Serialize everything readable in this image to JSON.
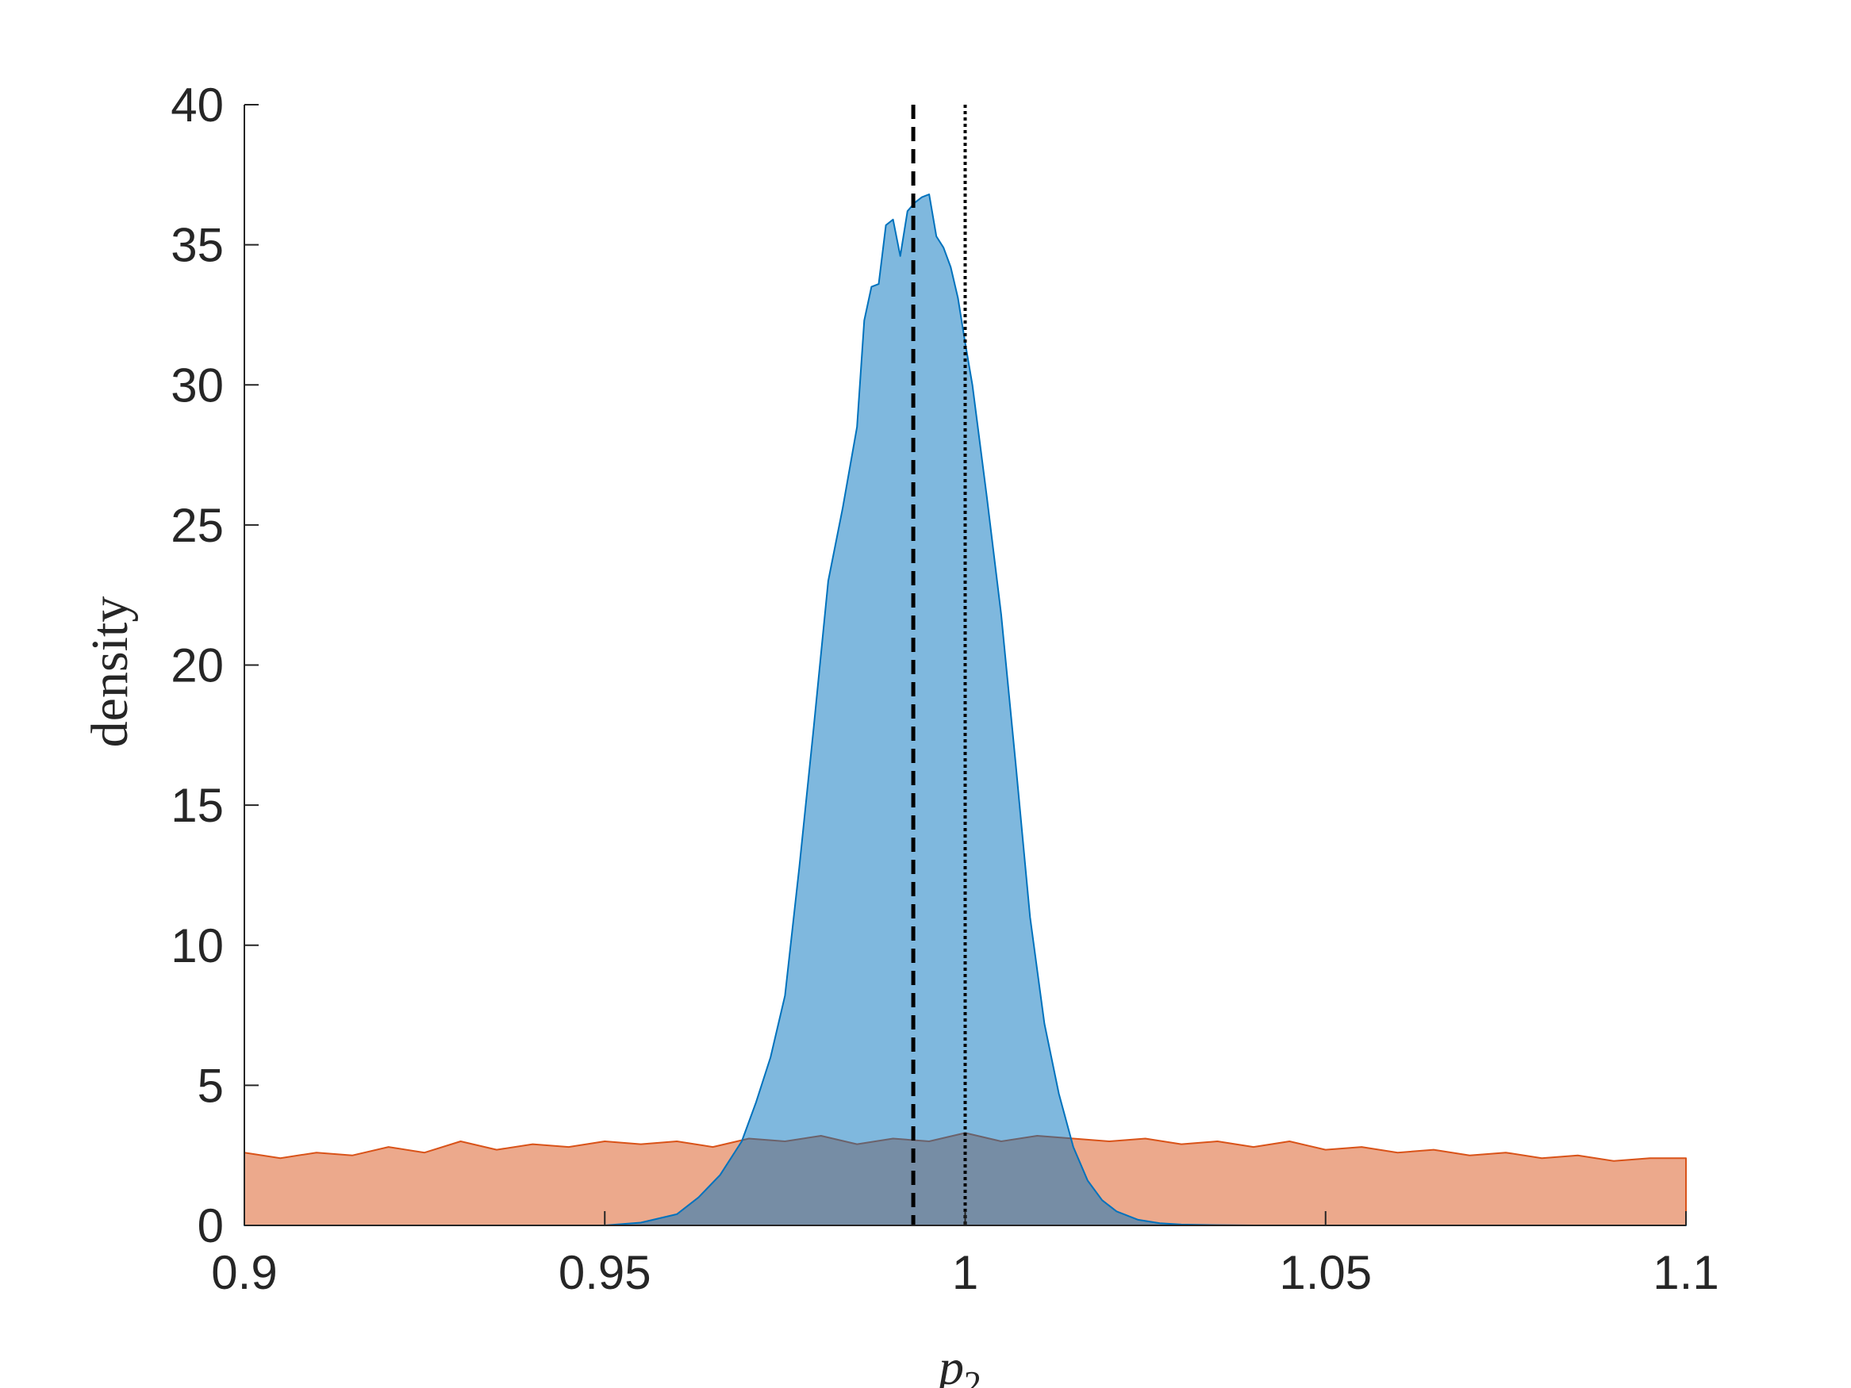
{
  "chart_data": {
    "type": "area",
    "title": "",
    "xlabel": "p",
    "xlabel_subscript": "2",
    "ylabel": "density",
    "xlim": [
      0.9,
      1.1
    ],
    "ylim": [
      0,
      40
    ],
    "xticks": [
      0.9,
      0.95,
      1.0,
      1.05,
      1.1
    ],
    "xtick_labels": [
      "0.9",
      "0.95",
      "1",
      "1.05",
      "1.1"
    ],
    "yticks": [
      0,
      5,
      10,
      15,
      20,
      25,
      30,
      35,
      40
    ],
    "ytick_labels": [
      "0",
      "5",
      "10",
      "15",
      "20",
      "25",
      "30",
      "35",
      "40"
    ],
    "grid": false,
    "legend": "none",
    "colors": {
      "posterior": "#0072BD",
      "prior": "#D95319",
      "overlap": "#7a8aa3",
      "axis": "#262626"
    },
    "series": [
      {
        "fill_color": "#0072BD",
        "fill_opacity": 0.5,
        "x": [
          0.9,
          0.95,
          0.955,
          0.96,
          0.963,
          0.966,
          0.969,
          0.971,
          0.973,
          0.975,
          0.977,
          0.979,
          0.981,
          0.983,
          0.985,
          0.986,
          0.987,
          0.988,
          0.989,
          0.99,
          0.991,
          0.992,
          0.993,
          0.994,
          0.995,
          0.996,
          0.997,
          0.998,
          0.999,
          1.0,
          1.001,
          1.002,
          1.003,
          1.005,
          1.007,
          1.009,
          1.011,
          1.013,
          1.015,
          1.017,
          1.019,
          1.021,
          1.024,
          1.027,
          1.03,
          1.035,
          1.04,
          1.1
        ],
        "y": [
          0,
          0,
          0.1,
          0.4,
          1.0,
          1.8,
          3.0,
          4.4,
          6.0,
          8.2,
          12.8,
          17.8,
          23.0,
          25.6,
          28.5,
          32.3,
          33.5,
          33.6,
          35.7,
          35.9,
          34.6,
          36.2,
          36.5,
          36.7,
          36.8,
          35.3,
          34.9,
          34.2,
          33.1,
          31.5,
          30.0,
          28.0,
          26.0,
          21.8,
          16.5,
          11.0,
          7.2,
          4.7,
          2.8,
          1.6,
          0.9,
          0.5,
          0.2,
          0.08,
          0.03,
          0.01,
          0.0,
          0.0
        ]
      },
      {
        "fill_color": "#D95319",
        "fill_opacity": 0.5,
        "x": [
          0.9,
          0.905,
          0.91,
          0.915,
          0.92,
          0.925,
          0.93,
          0.935,
          0.94,
          0.945,
          0.95,
          0.955,
          0.96,
          0.965,
          0.97,
          0.975,
          0.98,
          0.985,
          0.99,
          0.995,
          1.0,
          1.005,
          1.01,
          1.015,
          1.02,
          1.025,
          1.03,
          1.035,
          1.04,
          1.045,
          1.05,
          1.055,
          1.06,
          1.065,
          1.07,
          1.075,
          1.08,
          1.085,
          1.09,
          1.095,
          1.1
        ],
        "y": [
          2.6,
          2.4,
          2.6,
          2.5,
          2.8,
          2.6,
          3.0,
          2.7,
          2.9,
          2.8,
          3.0,
          2.9,
          3.0,
          2.8,
          3.1,
          3.0,
          3.2,
          2.9,
          3.1,
          3.0,
          3.3,
          3.0,
          3.2,
          3.1,
          3.0,
          3.1,
          2.9,
          3.0,
          2.8,
          3.0,
          2.7,
          2.8,
          2.6,
          2.7,
          2.5,
          2.6,
          2.4,
          2.5,
          2.3,
          2.4,
          2.4
        ]
      }
    ],
    "reference_lines": [
      {
        "x": 0.9928,
        "style": "dashed",
        "color": "#000000"
      },
      {
        "x": 1.0,
        "style": "dotted",
        "color": "#000000"
      }
    ]
  }
}
